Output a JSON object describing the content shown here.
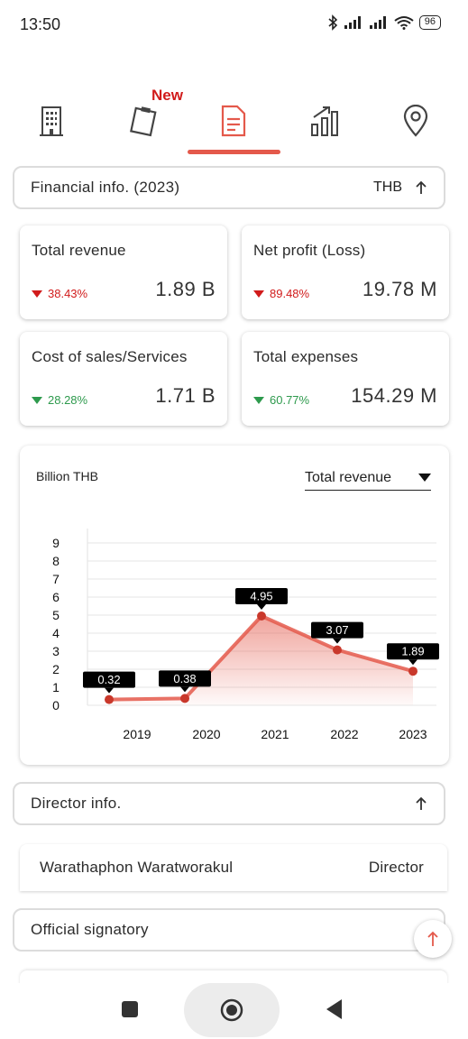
{
  "status_bar": {
    "time": "13:50",
    "battery": "96"
  },
  "tabs": {
    "new_badge": "New"
  },
  "financial": {
    "header_label": "Financial info. (2023)",
    "currency": "THB",
    "cards": [
      {
        "title": "Total revenue",
        "change": "38.43%",
        "value": "1.89 B",
        "direction": "down",
        "color": "#d11b1b"
      },
      {
        "title": "Net profit (Loss)",
        "change": "89.48%",
        "value": "19.78 M",
        "direction": "down",
        "color": "#d11b1b"
      },
      {
        "title": "Cost of sales/Services",
        "change": "28.28%",
        "value": "1.71 B",
        "direction": "down",
        "color": "#2e9a4d"
      },
      {
        "title": "Total expenses",
        "change": "60.77%",
        "value": "154.29 M",
        "direction": "down",
        "color": "#2e9a4d"
      }
    ]
  },
  "chart": {
    "unit_label": "Billion THB",
    "selected_metric": "Total revenue"
  },
  "chart_data": {
    "type": "area",
    "categories": [
      "2019",
      "2020",
      "2021",
      "2022",
      "2023"
    ],
    "values": [
      0.32,
      0.38,
      4.95,
      3.07,
      1.89
    ],
    "data_labels": [
      "0.32",
      "0.38",
      "4.95",
      "3.07",
      "1.89"
    ],
    "y_ticks": [
      "0",
      "1",
      "2",
      "3",
      "4",
      "5",
      "6",
      "7",
      "8",
      "9"
    ],
    "ylim": [
      0,
      9
    ],
    "ylabel": "Billion THB",
    "grid": true,
    "line_color": "#e4594b"
  },
  "director": {
    "header_label": "Director info.",
    "rows": [
      {
        "name": "Warathaphon Waratworakul",
        "role": "Director"
      }
    ]
  },
  "signatory": {
    "header_label": "Official signatory"
  }
}
